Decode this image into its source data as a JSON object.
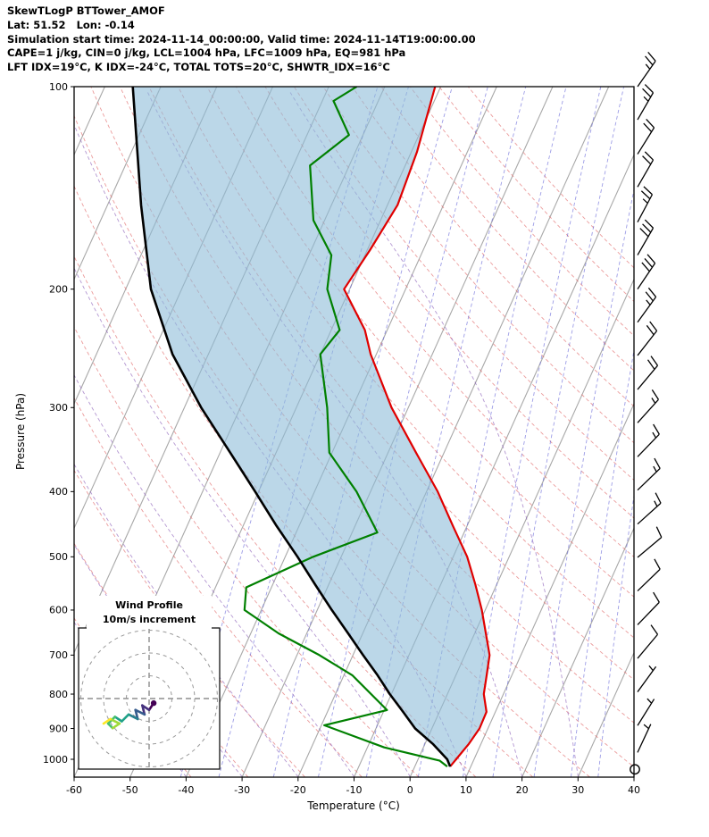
{
  "header": {
    "title": "SkewTLogP BTTower_AMOF",
    "location_line": "Lat: 51.52   Lon: -0.14",
    "time_line": "Simulation start time: 2024-11-14_00:00:00, Valid time: 2024-11-14T19:00:00.00",
    "stability_line1": "CAPE=1 j/kg, CIN=0 j/kg, LCL=1004 hPa, LFC=1009 hPa, EQ=981 hPa",
    "stability_line2": "LFT IDX=19°C, K IDX=-24°C, TOTAL TOTS=20°C, SHWTR_IDX=16°C"
  },
  "indices": {
    "CAPE_j_kg": 1,
    "CIN_j_kg": 0,
    "LCL_hPa": 1004,
    "LFC_hPa": 1009,
    "EQ_hPa": 981,
    "LFT_IDX_C": 19,
    "K_IDX_C": -24,
    "TOTAL_TOTS_C": 20,
    "SHWTR_IDX_C": 16
  },
  "chart_data": {
    "type": "line",
    "subtype": "skew-t-log-p",
    "title": "SkewTLogP BTTower_AMOF",
    "xlabel": "Temperature (°C)",
    "ylabel": "Pressure (hPa)",
    "x_axis": {
      "min": -60,
      "max": 40,
      "ticks": [
        -60,
        -50,
        -40,
        -30,
        -20,
        -10,
        0,
        10,
        20,
        30,
        40
      ]
    },
    "y_axis": {
      "scale": "log",
      "top_hPa": 100,
      "bottom_hPa": 1063,
      "ticks": [
        100,
        200,
        300,
        400,
        500,
        600,
        700,
        800,
        900,
        1000
      ]
    },
    "skew_deg_note": "isotherms skewed up-right",
    "background": {
      "isotherms": {
        "color": "#a8a8a8",
        "start_C": -120,
        "end_C": 40,
        "step_C": 10
      },
      "dry_adiabats": {
        "color": "#e06666",
        "theta_K_start": 230,
        "theta_K_end": 440,
        "step_K": 10
      },
      "moist_adiabats": {
        "color": "#8a5db8",
        "start_temps_C_at_1050": [
          -40,
          -30,
          -20,
          -10,
          0,
          10,
          20,
          30
        ]
      },
      "mixing_ratio_lines": {
        "color": "#5b5bd6",
        "values_g_kg": [
          0.1,
          0.2,
          0.5,
          1,
          2,
          4,
          7,
          10,
          16,
          24,
          32
        ]
      }
    },
    "area_fill": {
      "between": [
        "parcel",
        "temperature"
      ],
      "color": "#8ebcd8",
      "opacity": 0.6
    },
    "series": [
      {
        "name": "temperature",
        "color": "#e00000",
        "width": 2.2,
        "points": [
          [
            1025,
            6.3
          ],
          [
            1000,
            6.8
          ],
          [
            950,
            7.8
          ],
          [
            900,
            8.5
          ],
          [
            850,
            8.4
          ],
          [
            800,
            6.5
          ],
          [
            750,
            5.5
          ],
          [
            700,
            4.4
          ],
          [
            650,
            2.0
          ],
          [
            600,
            -0.6
          ],
          [
            550,
            -3.8
          ],
          [
            500,
            -7.5
          ],
          [
            450,
            -12.5
          ],
          [
            400,
            -18.0
          ],
          [
            350,
            -25.0
          ],
          [
            300,
            -33.0
          ],
          [
            250,
            -41.0
          ],
          [
            230,
            -44.0
          ],
          [
            200,
            -51.0
          ],
          [
            175,
            -49.5
          ],
          [
            150,
            -48.2
          ],
          [
            125,
            -49.0
          ],
          [
            100,
            -51.0
          ]
        ]
      },
      {
        "name": "dewpoint",
        "color": "#008000",
        "width": 2.2,
        "points": [
          [
            1025,
            5.8
          ],
          [
            1005,
            4.0
          ],
          [
            960,
            -7.0
          ],
          [
            890,
            -19.5
          ],
          [
            845,
            -9.5
          ],
          [
            750,
            -18.5
          ],
          [
            700,
            -26.0
          ],
          [
            650,
            -35.0
          ],
          [
            600,
            -43.0
          ],
          [
            555,
            -44.5
          ],
          [
            500,
            -35.0
          ],
          [
            460,
            -25.5
          ],
          [
            400,
            -32.5
          ],
          [
            350,
            -40.5
          ],
          [
            300,
            -44.5
          ],
          [
            250,
            -50.0
          ],
          [
            230,
            -48.5
          ],
          [
            200,
            -54.0
          ],
          [
            178,
            -56.0
          ],
          [
            158,
            -62.0
          ],
          [
            131,
            -67.0
          ],
          [
            118,
            -62.5
          ],
          [
            105,
            -68.0
          ],
          [
            100,
            -65.0
          ]
        ]
      },
      {
        "name": "parcel",
        "color": "#000000",
        "width": 2.6,
        "points": [
          [
            1025,
            6.3
          ],
          [
            1000,
            5.2
          ],
          [
            950,
            1.5
          ],
          [
            900,
            -3.0
          ],
          [
            850,
            -6.5
          ],
          [
            800,
            -10.3
          ],
          [
            750,
            -14.0
          ],
          [
            700,
            -18.2
          ],
          [
            650,
            -22.6
          ],
          [
            600,
            -27.4
          ],
          [
            550,
            -32.4
          ],
          [
            500,
            -37.8
          ],
          [
            450,
            -44.0
          ],
          [
            400,
            -50.6
          ],
          [
            350,
            -58.2
          ],
          [
            300,
            -67.0
          ],
          [
            250,
            -76.4
          ],
          [
            200,
            -85.5
          ],
          [
            150,
            -94.0
          ],
          [
            100,
            -105.0
          ]
        ]
      }
    ],
    "wind_barbs": {
      "units": "m/s",
      "full_barb": 10,
      "half_barb": 5,
      "levels": [
        {
          "p": 100,
          "speed_ms": 25,
          "dir_deg": 35
        },
        {
          "p": 112,
          "speed_ms": 25,
          "dir_deg": 30
        },
        {
          "p": 126,
          "speed_ms": 20,
          "dir_deg": 32
        },
        {
          "p": 141,
          "speed_ms": 22,
          "dir_deg": 30
        },
        {
          "p": 159,
          "speed_ms": 28,
          "dir_deg": 28
        },
        {
          "p": 178,
          "speed_ms": 30,
          "dir_deg": 30
        },
        {
          "p": 200,
          "speed_ms": 30,
          "dir_deg": 34
        },
        {
          "p": 224,
          "speed_ms": 25,
          "dir_deg": 36
        },
        {
          "p": 251,
          "speed_ms": 22,
          "dir_deg": 38
        },
        {
          "p": 282,
          "speed_ms": 20,
          "dir_deg": 40
        },
        {
          "p": 316,
          "speed_ms": 18,
          "dir_deg": 42
        },
        {
          "p": 355,
          "speed_ms": 18,
          "dir_deg": 44
        },
        {
          "p": 398,
          "speed_ms": 15,
          "dir_deg": 46
        },
        {
          "p": 447,
          "speed_ms": 15,
          "dir_deg": 48
        },
        {
          "p": 501,
          "speed_ms": 12,
          "dir_deg": 50
        },
        {
          "p": 562,
          "speed_ms": 12,
          "dir_deg": 46
        },
        {
          "p": 631,
          "speed_ms": 10,
          "dir_deg": 44
        },
        {
          "p": 708,
          "speed_ms": 10,
          "dir_deg": 40
        },
        {
          "p": 794,
          "speed_ms": 8,
          "dir_deg": 36
        },
        {
          "p": 891,
          "speed_ms": 6,
          "dir_deg": 32
        },
        {
          "p": 977,
          "speed_ms": 5,
          "dir_deg": 25
        },
        {
          "p": 1035,
          "speed_ms": 0,
          "dir_deg": 0
        }
      ]
    },
    "hodograph": {
      "title_line1": "Wind Profile",
      "title_line2": "10m/s increment",
      "ring_interval_ms": 10,
      "rings_ms": [
        10,
        20,
        30
      ],
      "trace_uv_ms": [
        [
          2,
          -2
        ],
        [
          0,
          -5
        ],
        [
          -3,
          -3
        ],
        [
          -2,
          -7
        ],
        [
          -6,
          -5
        ],
        [
          -5,
          -9
        ],
        [
          -9,
          -7
        ],
        [
          -12,
          -10
        ],
        [
          -15,
          -8
        ],
        [
          -18,
          -11
        ],
        [
          -16,
          -13
        ],
        [
          -13,
          -11
        ],
        [
          -17,
          -9
        ],
        [
          -20,
          -11
        ]
      ],
      "palette": [
        "#440154",
        "#46327e",
        "#365c8d",
        "#277f8e",
        "#1fa187",
        "#4ac16d",
        "#a0da39",
        "#fde725"
      ]
    }
  }
}
